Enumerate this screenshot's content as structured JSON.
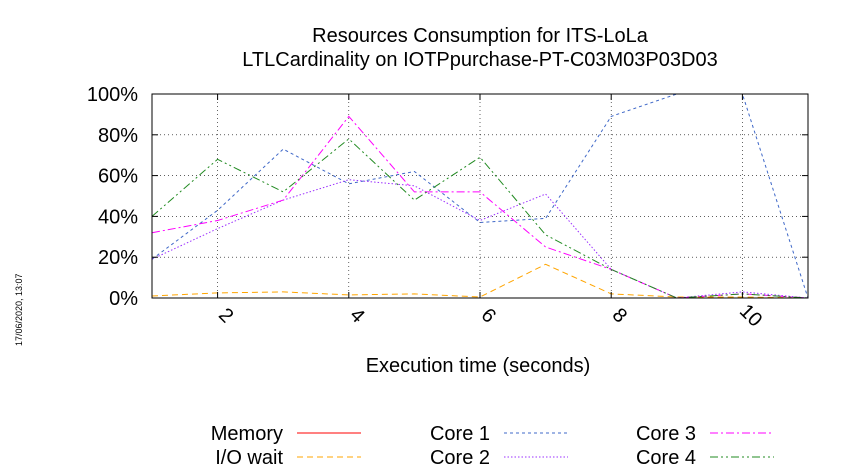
{
  "timestamp": "17/06/2020, 13:07",
  "chart_data": {
    "type": "line",
    "title_lines": [
      "Resources Consumption for ITS-LoLa",
      "LTLCardinality on IOTPpurchase-PT-C03M03P03D03"
    ],
    "xlabel": "Execution time (seconds)",
    "ylabel": "",
    "xlim": [
      1,
      11
    ],
    "ylim": [
      0,
      100
    ],
    "x_ticks": [
      2,
      4,
      6,
      8,
      10
    ],
    "y_ticks": [
      {
        "value": 0,
        "label": "0%"
      },
      {
        "value": 20,
        "label": "20%"
      },
      {
        "value": 40,
        "label": "40%"
      },
      {
        "value": 60,
        "label": "60%"
      },
      {
        "value": 80,
        "label": "80%"
      },
      {
        "value": 100,
        "label": "100%"
      }
    ],
    "grid": true,
    "legend_position": "bottom",
    "x": [
      1,
      2,
      3,
      4,
      5,
      6,
      7,
      8,
      9,
      10,
      11
    ],
    "series": [
      {
        "name": "Memory",
        "color": "#ff0000",
        "dash": "solid",
        "values": [
          0,
          0,
          0,
          0,
          0,
          0,
          0,
          0,
          0,
          0,
          0
        ]
      },
      {
        "name": "I/O wait",
        "color": "#ffa500",
        "dash": "dashed",
        "values": [
          1,
          2.5,
          3,
          1.5,
          2,
          0.5,
          16.5,
          2,
          0.5,
          0.5,
          0
        ]
      },
      {
        "name": "Core 1",
        "color": "#3f68c8",
        "dash": "dotted",
        "values": [
          19,
          43,
          73,
          56,
          62,
          37,
          39,
          89,
          100,
          100,
          0
        ]
      },
      {
        "name": "Core 2",
        "color": "#9b30ff",
        "dash": "dense-dotted",
        "values": [
          19,
          34,
          48,
          58,
          55,
          38,
          51,
          14,
          0,
          3,
          0
        ]
      },
      {
        "name": "Core 3",
        "color": "#ff00ff",
        "dash": "dash-dot",
        "values": [
          32,
          38,
          48,
          89,
          52,
          52,
          25,
          14,
          0,
          2,
          0
        ]
      },
      {
        "name": "Core 4",
        "color": "#228b22",
        "dash": "dash-dot-dot",
        "values": [
          40,
          68,
          52,
          78,
          48,
          69,
          31,
          14,
          0,
          2,
          0
        ]
      }
    ]
  }
}
